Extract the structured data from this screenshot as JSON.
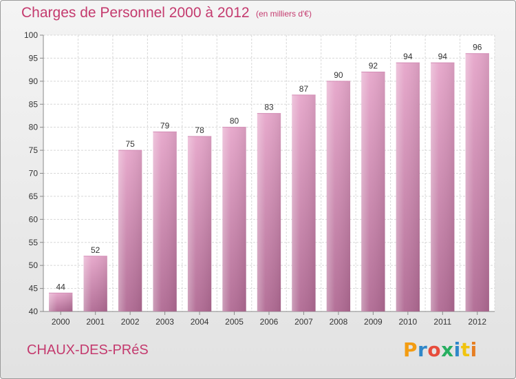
{
  "header": {
    "title": "Charges de Personnel 2000 à 2012",
    "subtitle": "(en milliers d'€)"
  },
  "footer": {
    "commune": "CHAUX-DES-PRéS",
    "logo_text": "Proxiti"
  },
  "colors": {
    "title": "#c43a6e",
    "bar_top": "#e6a6ca",
    "bar_bottom": "#b06a93",
    "logo_letters": [
      "#f39c12",
      "#2f87c9",
      "#e74c3c",
      "#27ae60",
      "#2f87c9",
      "#f1c40f",
      "#e67e22"
    ]
  },
  "chart_data": {
    "type": "bar",
    "title": "Charges de Personnel 2000 à 2012",
    "subtitle": "(en milliers d'€)",
    "categories": [
      "2000",
      "2001",
      "2002",
      "2003",
      "2004",
      "2005",
      "2006",
      "2007",
      "2008",
      "2009",
      "2010",
      "2011",
      "2012"
    ],
    "values": [
      44,
      52,
      75,
      79,
      78,
      80,
      83,
      87,
      90,
      92,
      94,
      94,
      96
    ],
    "ylim": [
      40,
      100
    ],
    "yticks": [
      40,
      45,
      50,
      55,
      60,
      65,
      70,
      75,
      80,
      85,
      90,
      95,
      100
    ],
    "grid": true,
    "legend": "none"
  }
}
